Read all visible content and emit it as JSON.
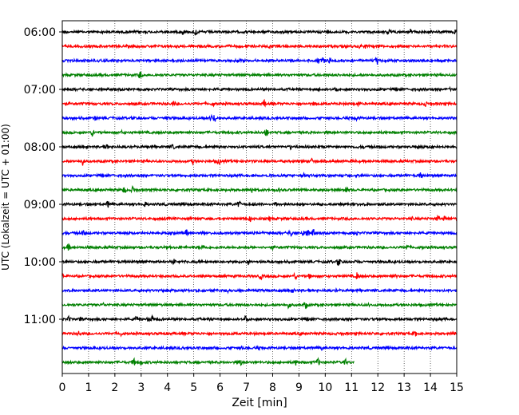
{
  "chart_data": {
    "type": "line",
    "title": "",
    "xlabel": "Zeit  [min]",
    "ylabel": "UTC (Lokalzeit = UTC + 01:00)",
    "xlim": [
      0,
      15
    ],
    "x_ticks": [
      "0",
      "1",
      "2",
      "3",
      "4",
      "5",
      "6",
      "7",
      "8",
      "9",
      "10",
      "11",
      "12",
      "13",
      "14",
      "15"
    ],
    "y_ticks": [
      "06:00",
      "07:00",
      "08:00",
      "09:00",
      "10:00",
      "11:00"
    ],
    "grid": "vertical dotted",
    "colors": [
      "#000000",
      "#ff0000",
      "#0000ff",
      "#008000"
    ],
    "series": [
      {
        "start": "06:00",
        "x_end": 15
      },
      {
        "start": "06:15",
        "x_end": 15
      },
      {
        "start": "06:30",
        "x_end": 15
      },
      {
        "start": "06:45",
        "x_end": 15
      },
      {
        "start": "07:00",
        "x_end": 15
      },
      {
        "start": "07:15",
        "x_end": 15
      },
      {
        "start": "07:30",
        "x_end": 15
      },
      {
        "start": "07:45",
        "x_end": 15
      },
      {
        "start": "08:00",
        "x_end": 15
      },
      {
        "start": "08:15",
        "x_end": 15
      },
      {
        "start": "08:30",
        "x_end": 15
      },
      {
        "start": "08:45",
        "x_end": 15
      },
      {
        "start": "09:00",
        "x_end": 15
      },
      {
        "start": "09:15",
        "x_end": 15
      },
      {
        "start": "09:30",
        "x_end": 15
      },
      {
        "start": "09:45",
        "x_end": 15
      },
      {
        "start": "10:00",
        "x_end": 15
      },
      {
        "start": "10:15",
        "x_end": 15
      },
      {
        "start": "10:30",
        "x_end": 15
      },
      {
        "start": "10:45",
        "x_end": 15
      },
      {
        "start": "11:00",
        "x_end": 15
      },
      {
        "start": "11:15",
        "x_end": 15
      },
      {
        "start": "11:30",
        "x_end": 15
      },
      {
        "start": "11:45",
        "x_end": 11.1
      }
    ]
  }
}
